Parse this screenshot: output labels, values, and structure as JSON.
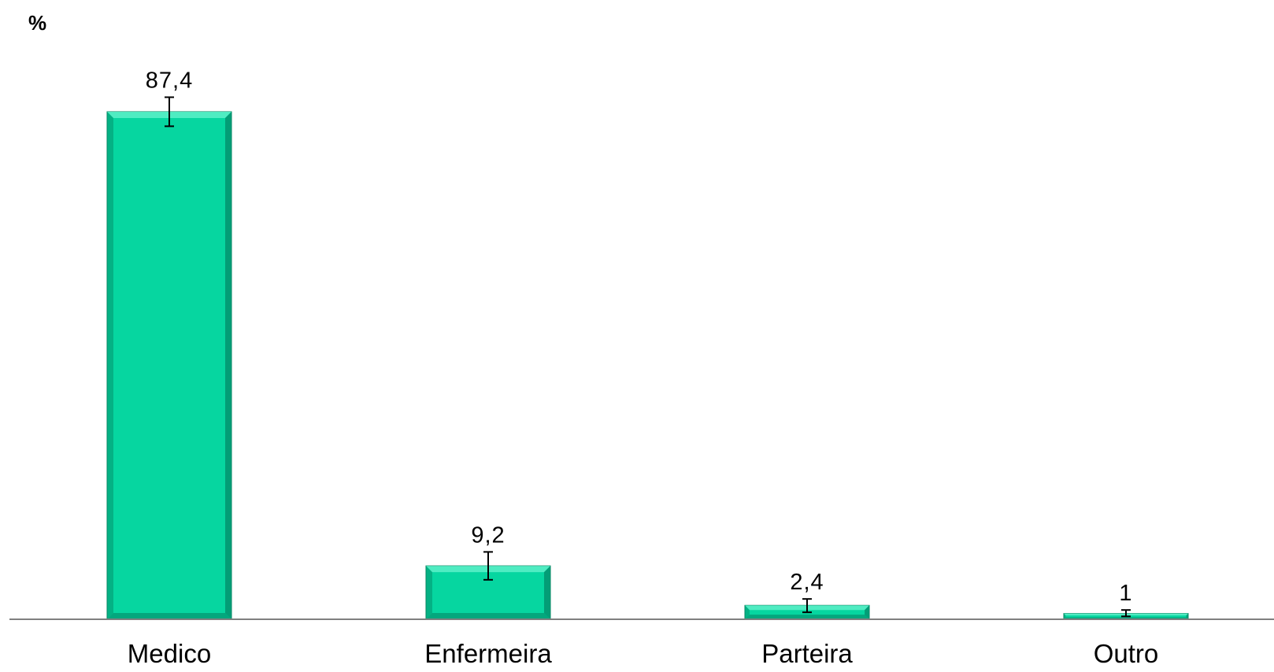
{
  "chart_data": {
    "type": "bar",
    "ylabel": "%",
    "categories": [
      "Medico",
      "Enfermeira",
      "Parteira",
      "Outro"
    ],
    "values": [
      87.4,
      9.2,
      2.4,
      1
    ],
    "value_labels": [
      "87,4",
      "9,2",
      "2,4",
      "1"
    ],
    "error_bars": [
      {
        "low": 84.9,
        "high": 89.9
      },
      {
        "low": 6.8,
        "high": 11.6
      },
      {
        "low": 1.2,
        "high": 3.5
      },
      {
        "low": 0.5,
        "high": 1.6
      }
    ],
    "ylim": [
      0,
      100
    ],
    "grid": false,
    "legend": "none",
    "colors": {
      "bar_fill": "#06D6A0",
      "bar_edge": "#03805d",
      "bar_highlight": "#5df0c8",
      "bar_shadow": "#04936e",
      "axis": "#7f7f7f",
      "text": "#000000"
    }
  }
}
